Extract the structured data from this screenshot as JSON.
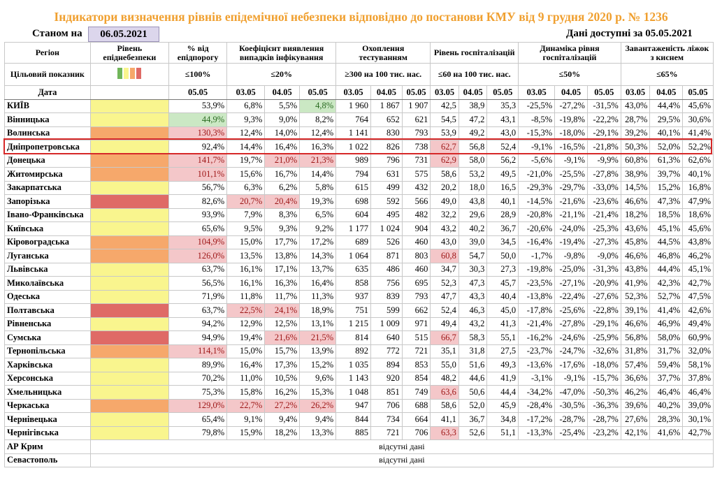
{
  "title": "Індикатори визначення рівнів епідемічної небезпеки відповідно до постанови КМУ від 9 грудня 2020 р. № 1236",
  "as_of_label": "Станом на",
  "as_of_date": "06.05.2021",
  "data_available": "Дані доступні за 05.05.2021",
  "headers": {
    "region": "Регіон",
    "level": "Рівень епіднебезпеки",
    "pct_threshold": "% від епідпорогу",
    "infection_ratio": "Коефіцієнт виявлення випадків інфікування",
    "testing": "Охоплення тестуванням",
    "hospitalization": "Рівень госпіталізацій",
    "hosp_dynamics": "Динаміка рівня госпіталізацій",
    "oxygen": "Завантаженість ліжок з киснем"
  },
  "targets": {
    "label": "Цільовий показник",
    "pct_threshold": "≤100%",
    "infection_ratio": "≤20%",
    "testing": "≥300 на 100 тис. нас.",
    "hospitalization": "≤60 на 100 тис. нас.",
    "hosp_dynamics": "≤50%",
    "oxygen": "≤65%"
  },
  "date_row": {
    "label": "Дата",
    "pct": "05.05",
    "d": [
      "03.05",
      "04.05",
      "05.05"
    ]
  },
  "legend_colors": [
    "#71b65a",
    "#f9f58e",
    "#f6a86b",
    "#df6a66"
  ],
  "regions": [
    {
      "name": "КИЇВ",
      "level": "yellow",
      "pct": "53,9%",
      "inf": [
        "6,8%",
        "5,5%",
        "4,8%"
      ],
      "test": [
        "1 960",
        "1 867",
        "1 907"
      ],
      "hosp": [
        "42,5",
        "38,9",
        "35,3"
      ],
      "dyn": [
        "-25,5%",
        "-27,2%",
        "-31,5%"
      ],
      "oxy": [
        "43,0%",
        "44,4%",
        "45,6%"
      ],
      "hl": {
        "inf2": "grn"
      }
    },
    {
      "name": "Вінницька",
      "level": "yellow",
      "pct": "44,9%",
      "inf": [
        "9,3%",
        "9,0%",
        "8,2%"
      ],
      "test": [
        "764",
        "652",
        "621"
      ],
      "hosp": [
        "54,5",
        "47,2",
        "43,1"
      ],
      "dyn": [
        "-8,5%",
        "-19,8%",
        "-22,2%"
      ],
      "oxy": [
        "28,7%",
        "29,5%",
        "30,6%"
      ],
      "hl": {
        "pct": "grn"
      }
    },
    {
      "name": "Волинська",
      "level": "orange",
      "pct": "130,3%",
      "inf": [
        "12,4%",
        "14,0%",
        "12,4%"
      ],
      "test": [
        "1 141",
        "830",
        "793"
      ],
      "hosp": [
        "53,9",
        "49,2",
        "43,0"
      ],
      "dyn": [
        "-15,3%",
        "-18,0%",
        "-29,1%"
      ],
      "oxy": [
        "39,2%",
        "40,1%",
        "41,4%"
      ],
      "hl": {
        "pct": "red"
      }
    },
    {
      "name": "Дніпропетровська",
      "level": "yellow",
      "pct": "92,4%",
      "inf": [
        "14,4%",
        "16,4%",
        "16,3%"
      ],
      "test": [
        "1 022",
        "826",
        "738"
      ],
      "hosp": [
        "62,7",
        "56,8",
        "52,4"
      ],
      "dyn": [
        "-9,1%",
        "-16,5%",
        "-21,8%"
      ],
      "oxy": [
        "50,3%",
        "52,0%",
        "52,2%"
      ],
      "hl": {
        "hosp0": "red"
      }
    },
    {
      "name": "Донецька",
      "level": "orange",
      "pct": "141,7%",
      "inf": [
        "19,7%",
        "21,0%",
        "21,3%"
      ],
      "test": [
        "989",
        "796",
        "731"
      ],
      "hosp": [
        "62,9",
        "58,0",
        "56,2"
      ],
      "dyn": [
        "-5,6%",
        "-9,1%",
        "-9,9%"
      ],
      "oxy": [
        "60,8%",
        "61,3%",
        "62,6%"
      ],
      "hl": {
        "pct": "red",
        "inf1": "red",
        "inf2": "red",
        "hosp0": "red"
      }
    },
    {
      "name": "Житомирська",
      "level": "orange",
      "pct": "101,1%",
      "inf": [
        "15,6%",
        "16,7%",
        "14,4%"
      ],
      "test": [
        "794",
        "631",
        "575"
      ],
      "hosp": [
        "58,6",
        "53,2",
        "49,5"
      ],
      "dyn": [
        "-21,0%",
        "-25,5%",
        "-27,8%"
      ],
      "oxy": [
        "38,9%",
        "39,7%",
        "40,1%"
      ],
      "hl": {
        "pct": "red"
      }
    },
    {
      "name": "Закарпатська",
      "level": "yellow",
      "pct": "56,7%",
      "inf": [
        "6,3%",
        "6,2%",
        "5,8%"
      ],
      "test": [
        "615",
        "499",
        "432"
      ],
      "hosp": [
        "20,2",
        "18,0",
        "16,5"
      ],
      "dyn": [
        "-29,3%",
        "-29,7%",
        "-33,0%"
      ],
      "oxy": [
        "14,5%",
        "15,2%",
        "16,8%"
      ],
      "hl": {}
    },
    {
      "name": "Запорізька",
      "level": "red",
      "pct": "82,6%",
      "inf": [
        "20,7%",
        "20,4%",
        "19,3%"
      ],
      "test": [
        "698",
        "592",
        "566"
      ],
      "hosp": [
        "49,0",
        "43,8",
        "40,1"
      ],
      "dyn": [
        "-14,5%",
        "-21,6%",
        "-23,6%"
      ],
      "oxy": [
        "46,6%",
        "47,3%",
        "47,9%"
      ],
      "hl": {
        "inf0": "red",
        "inf1": "red"
      }
    },
    {
      "name": "Івано-Франківська",
      "level": "yellow",
      "pct": "93,9%",
      "inf": [
        "7,9%",
        "8,3%",
        "6,5%"
      ],
      "test": [
        "604",
        "495",
        "482"
      ],
      "hosp": [
        "32,2",
        "29,6",
        "28,9"
      ],
      "dyn": [
        "-20,8%",
        "-21,1%",
        "-21,4%"
      ],
      "oxy": [
        "18,2%",
        "18,5%",
        "18,6%"
      ],
      "hl": {}
    },
    {
      "name": "Київська",
      "level": "yellow",
      "pct": "65,6%",
      "inf": [
        "9,5%",
        "9,3%",
        "9,2%"
      ],
      "test": [
        "1 177",
        "1 024",
        "904"
      ],
      "hosp": [
        "43,2",
        "40,2",
        "36,7"
      ],
      "dyn": [
        "-20,6%",
        "-24,0%",
        "-25,3%"
      ],
      "oxy": [
        "43,6%",
        "45,1%",
        "45,6%"
      ],
      "hl": {}
    },
    {
      "name": "Кіровоградська",
      "level": "orange",
      "pct": "104,9%",
      "inf": [
        "15,0%",
        "17,7%",
        "17,2%"
      ],
      "test": [
        "689",
        "526",
        "460"
      ],
      "hosp": [
        "43,0",
        "39,0",
        "34,5"
      ],
      "dyn": [
        "-16,4%",
        "-19,4%",
        "-27,3%"
      ],
      "oxy": [
        "45,8%",
        "44,5%",
        "43,8%"
      ],
      "hl": {
        "pct": "red"
      }
    },
    {
      "name": "Луганська",
      "level": "orange",
      "pct": "126,0%",
      "inf": [
        "13,5%",
        "13,8%",
        "14,3%"
      ],
      "test": [
        "1 064",
        "871",
        "803"
      ],
      "hosp": [
        "60,8",
        "54,7",
        "50,0"
      ],
      "dyn": [
        "-1,7%",
        "-9,8%",
        "-9,0%"
      ],
      "oxy": [
        "46,6%",
        "46,8%",
        "46,2%"
      ],
      "hl": {
        "pct": "red",
        "hosp0": "red"
      }
    },
    {
      "name": "Львівська",
      "level": "yellow",
      "pct": "63,7%",
      "inf": [
        "16,1%",
        "17,1%",
        "13,7%"
      ],
      "test": [
        "635",
        "486",
        "460"
      ],
      "hosp": [
        "34,7",
        "30,3",
        "27,3"
      ],
      "dyn": [
        "-19,8%",
        "-25,0%",
        "-31,3%"
      ],
      "oxy": [
        "43,8%",
        "44,4%",
        "45,1%"
      ],
      "hl": {}
    },
    {
      "name": "Миколаївська",
      "level": "yellow",
      "pct": "56,5%",
      "inf": [
        "16,1%",
        "16,3%",
        "16,4%"
      ],
      "test": [
        "858",
        "756",
        "695"
      ],
      "hosp": [
        "52,3",
        "47,3",
        "45,7"
      ],
      "dyn": [
        "-23,5%",
        "-27,1%",
        "-20,9%"
      ],
      "oxy": [
        "41,9%",
        "42,3%",
        "42,7%"
      ],
      "hl": {}
    },
    {
      "name": "Одеська",
      "level": "yellow",
      "pct": "71,9%",
      "inf": [
        "11,8%",
        "11,7%",
        "11,3%"
      ],
      "test": [
        "937",
        "839",
        "793"
      ],
      "hosp": [
        "47,7",
        "43,3",
        "40,4"
      ],
      "dyn": [
        "-13,8%",
        "-22,4%",
        "-27,6%"
      ],
      "oxy": [
        "52,3%",
        "52,7%",
        "47,5%"
      ],
      "hl": {}
    },
    {
      "name": "Полтавська",
      "level": "red",
      "pct": "63,7%",
      "inf": [
        "22,5%",
        "24,1%",
        "18,9%"
      ],
      "test": [
        "751",
        "599",
        "662"
      ],
      "hosp": [
        "52,4",
        "46,3",
        "45,0"
      ],
      "dyn": [
        "-17,8%",
        "-25,6%",
        "-22,8%"
      ],
      "oxy": [
        "39,1%",
        "41,4%",
        "42,6%"
      ],
      "hl": {
        "inf0": "red",
        "inf1": "red"
      }
    },
    {
      "name": "Рівненська",
      "level": "yellow",
      "pct": "94,2%",
      "inf": [
        "12,9%",
        "12,5%",
        "13,1%"
      ],
      "test": [
        "1 215",
        "1 009",
        "971"
      ],
      "hosp": [
        "49,4",
        "43,2",
        "41,3"
      ],
      "dyn": [
        "-21,4%",
        "-27,8%",
        "-29,1%"
      ],
      "oxy": [
        "46,6%",
        "46,9%",
        "49,4%"
      ],
      "hl": {}
    },
    {
      "name": "Сумська",
      "level": "red",
      "pct": "94,9%",
      "inf": [
        "19,4%",
        "21,6%",
        "21,5%"
      ],
      "test": [
        "814",
        "640",
        "515"
      ],
      "hosp": [
        "66,7",
        "58,3",
        "55,1"
      ],
      "dyn": [
        "-16,2%",
        "-24,6%",
        "-25,9%"
      ],
      "oxy": [
        "56,8%",
        "58,0%",
        "60,9%"
      ],
      "hl": {
        "inf1": "red",
        "inf2": "red",
        "hosp0": "red"
      }
    },
    {
      "name": "Тернопільська",
      "level": "orange",
      "pct": "114,1%",
      "inf": [
        "15,0%",
        "15,7%",
        "13,9%"
      ],
      "test": [
        "892",
        "772",
        "721"
      ],
      "hosp": [
        "35,1",
        "31,8",
        "27,5"
      ],
      "dyn": [
        "-23,7%",
        "-24,7%",
        "-32,6%"
      ],
      "oxy": [
        "31,8%",
        "31,7%",
        "32,0%"
      ],
      "hl": {
        "pct": "red"
      }
    },
    {
      "name": "Харківська",
      "level": "yellow",
      "pct": "89,9%",
      "inf": [
        "16,4%",
        "17,3%",
        "15,2%"
      ],
      "test": [
        "1 035",
        "894",
        "853"
      ],
      "hosp": [
        "55,0",
        "51,6",
        "49,3"
      ],
      "dyn": [
        "-13,6%",
        "-17,6%",
        "-18,0%"
      ],
      "oxy": [
        "57,4%",
        "59,4%",
        "58,1%"
      ],
      "hl": {}
    },
    {
      "name": "Херсонська",
      "level": "yellow",
      "pct": "70,2%",
      "inf": [
        "11,0%",
        "10,5%",
        "9,6%"
      ],
      "test": [
        "1 143",
        "920",
        "854"
      ],
      "hosp": [
        "48,2",
        "44,6",
        "41,9"
      ],
      "dyn": [
        "-3,1%",
        "-9,1%",
        "-15,7%"
      ],
      "oxy": [
        "36,6%",
        "37,7%",
        "37,8%"
      ],
      "hl": {}
    },
    {
      "name": "Хмельницька",
      "level": "yellow",
      "pct": "75,3%",
      "inf": [
        "15,8%",
        "16,2%",
        "15,3%"
      ],
      "test": [
        "1 048",
        "851",
        "749"
      ],
      "hosp": [
        "63,6",
        "50,6",
        "44,4"
      ],
      "dyn": [
        "-34,2%",
        "-47,0%",
        "-50,3%"
      ],
      "oxy": [
        "46,2%",
        "46,4%",
        "46,4%"
      ],
      "hl": {
        "hosp0": "red"
      }
    },
    {
      "name": "Черкаська",
      "level": "orange",
      "pct": "129,0%",
      "inf": [
        "22,7%",
        "27,2%",
        "26,2%"
      ],
      "test": [
        "947",
        "706",
        "688"
      ],
      "hosp": [
        "58,6",
        "52,0",
        "45,9"
      ],
      "dyn": [
        "-28,4%",
        "-30,5%",
        "-36,3%"
      ],
      "oxy": [
        "39,6%",
        "40,2%",
        "39,0%"
      ],
      "hl": {
        "pct": "red",
        "inf0": "red",
        "inf1": "red",
        "inf2": "red"
      }
    },
    {
      "name": "Чернівецька",
      "level": "yellow",
      "pct": "65,4%",
      "inf": [
        "9,1%",
        "9,4%",
        "9,4%"
      ],
      "test": [
        "844",
        "734",
        "664"
      ],
      "hosp": [
        "41,1",
        "36,7",
        "34,8"
      ],
      "dyn": [
        "-17,2%",
        "-28,7%",
        "-28,7%"
      ],
      "oxy": [
        "27,6%",
        "28,3%",
        "30,1%"
      ],
      "hl": {}
    },
    {
      "name": "Чернігівська",
      "level": "yellow",
      "pct": "79,8%",
      "inf": [
        "15,9%",
        "18,2%",
        "13,3%"
      ],
      "test": [
        "885",
        "721",
        "706"
      ],
      "hosp": [
        "63,3",
        "52,6",
        "51,1"
      ],
      "dyn": [
        "-13,3%",
        "-25,4%",
        "-23,2%"
      ],
      "oxy": [
        "42,1%",
        "41,6%",
        "42,7%"
      ],
      "hl": {
        "hosp0": "red"
      }
    }
  ],
  "missing": [
    {
      "name": "АР Крим",
      "text": "відсутні дані"
    },
    {
      "name": "Севастополь",
      "text": "відсутні дані"
    }
  ]
}
